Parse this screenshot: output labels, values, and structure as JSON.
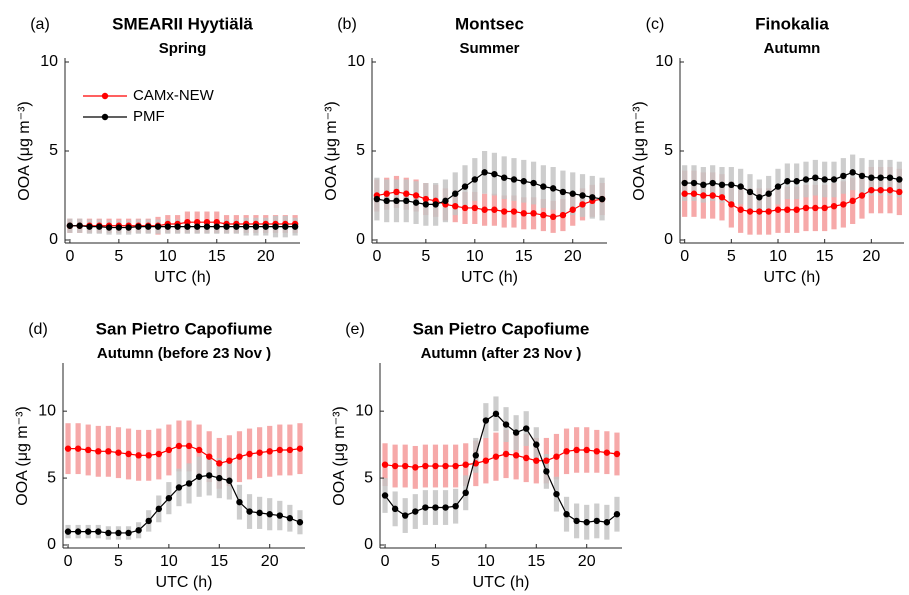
{
  "chart_data": [
    {
      "type": "line",
      "panel_label": "(a)",
      "title": "SMEARII Hyytiälä",
      "subtitle": "Spring",
      "xlabel": "UTC (h)",
      "ylabel": "OOA (μg m⁻³)",
      "x": [
        0,
        1,
        2,
        3,
        4,
        5,
        6,
        7,
        8,
        9,
        10,
        11,
        12,
        13,
        14,
        15,
        16,
        17,
        18,
        19,
        20,
        21,
        22,
        23
      ],
      "xlim": [
        -0.5,
        23.5
      ],
      "xticks": [
        0,
        5,
        10,
        15,
        20
      ],
      "ylim": [
        0,
        10
      ],
      "yticks": [
        0,
        5,
        10
      ],
      "legend": "upper left",
      "series": [
        {
          "name": "CAMx-NEW",
          "color": "#ff0000",
          "error_color": "#f59a9a",
          "values": [
            0.8,
            0.8,
            0.8,
            0.8,
            0.8,
            0.8,
            0.8,
            0.8,
            0.8,
            0.8,
            0.9,
            0.9,
            1.0,
            1.0,
            1.0,
            1.0,
            0.9,
            0.9,
            0.9,
            0.9,
            0.9,
            0.9,
            0.9,
            0.9
          ],
          "errors": [
            0.4,
            0.4,
            0.4,
            0.4,
            0.4,
            0.4,
            0.4,
            0.4,
            0.4,
            0.5,
            0.5,
            0.5,
            0.6,
            0.6,
            0.6,
            0.6,
            0.5,
            0.5,
            0.5,
            0.5,
            0.5,
            0.5,
            0.5,
            0.5
          ]
        },
        {
          "name": "PMF",
          "color": "#000000",
          "error_color": "#c4c4c4",
          "values": [
            0.8,
            0.8,
            0.75,
            0.75,
            0.7,
            0.7,
            0.7,
            0.75,
            0.75,
            0.75,
            0.75,
            0.75,
            0.75,
            0.75,
            0.75,
            0.75,
            0.75,
            0.75,
            0.75,
            0.75,
            0.75,
            0.75,
            0.75,
            0.75
          ],
          "errors": [
            0.4,
            0.4,
            0.4,
            0.4,
            0.4,
            0.4,
            0.4,
            0.4,
            0.4,
            0.4,
            0.4,
            0.4,
            0.4,
            0.4,
            0.4,
            0.4,
            0.4,
            0.4,
            0.5,
            0.5,
            0.5,
            0.6,
            0.6,
            0.5
          ]
        }
      ]
    },
    {
      "type": "line",
      "panel_label": "(b)",
      "title": "Montsec",
      "subtitle": "Summer",
      "xlabel": "UTC (h)",
      "ylabel": "OOA (μg m⁻³)",
      "x": [
        0,
        1,
        2,
        3,
        4,
        5,
        6,
        7,
        8,
        9,
        10,
        11,
        12,
        13,
        14,
        15,
        16,
        17,
        18,
        19,
        20,
        21,
        22,
        23
      ],
      "xlim": [
        -0.5,
        23.5
      ],
      "xticks": [
        0,
        5,
        10,
        15,
        20
      ],
      "ylim": [
        0,
        10
      ],
      "yticks": [
        0,
        5,
        10
      ],
      "series": [
        {
          "color": "#ff0000",
          "error_color": "#f59a9a",
          "values": [
            2.5,
            2.6,
            2.7,
            2.6,
            2.5,
            2.3,
            2.2,
            2.0,
            1.9,
            1.8,
            1.8,
            1.7,
            1.7,
            1.6,
            1.6,
            1.5,
            1.5,
            1.4,
            1.3,
            1.4,
            1.7,
            2.0,
            2.2,
            2.3
          ],
          "errors": [
            0.9,
            0.9,
            0.9,
            0.9,
            0.9,
            0.9,
            0.9,
            0.9,
            0.9,
            0.9,
            0.9,
            0.9,
            0.9,
            0.9,
            0.9,
            0.9,
            0.9,
            0.9,
            0.9,
            0.9,
            0.9,
            0.9,
            0.9,
            0.9
          ]
        },
        {
          "color": "#000000",
          "error_color": "#c4c4c4",
          "values": [
            2.3,
            2.2,
            2.2,
            2.2,
            2.1,
            2.0,
            2.0,
            2.2,
            2.6,
            3.0,
            3.4,
            3.8,
            3.7,
            3.5,
            3.4,
            3.3,
            3.2,
            3.0,
            2.9,
            2.7,
            2.6,
            2.5,
            2.4,
            2.3
          ],
          "errors": [
            1.2,
            1.2,
            1.2,
            1.2,
            1.2,
            1.2,
            1.2,
            1.2,
            1.2,
            1.2,
            1.2,
            1.2,
            1.2,
            1.2,
            1.2,
            1.2,
            1.2,
            1.2,
            1.2,
            1.2,
            1.2,
            1.2,
            1.2,
            1.2
          ]
        }
      ]
    },
    {
      "type": "line",
      "panel_label": "(c)",
      "title": "Finokalia",
      "subtitle": "Autumn",
      "xlabel": "UTC (h)",
      "ylabel": "OOA (μg m⁻³)",
      "x": [
        0,
        1,
        2,
        3,
        4,
        5,
        6,
        7,
        8,
        9,
        10,
        11,
        12,
        13,
        14,
        15,
        16,
        17,
        18,
        19,
        20,
        21,
        22,
        23
      ],
      "xlim": [
        -0.5,
        23.5
      ],
      "xticks": [
        0,
        5,
        10,
        15,
        20
      ],
      "ylim": [
        0,
        10
      ],
      "yticks": [
        0,
        5,
        10
      ],
      "series": [
        {
          "color": "#ff0000",
          "error_color": "#f59a9a",
          "values": [
            2.6,
            2.6,
            2.5,
            2.5,
            2.4,
            2.0,
            1.7,
            1.6,
            1.6,
            1.6,
            1.7,
            1.7,
            1.7,
            1.8,
            1.8,
            1.8,
            1.9,
            2.0,
            2.2,
            2.5,
            2.8,
            2.8,
            2.8,
            2.7
          ],
          "errors": [
            1.3,
            1.3,
            1.3,
            1.3,
            1.3,
            1.3,
            1.3,
            1.3,
            1.3,
            1.3,
            1.3,
            1.3,
            1.3,
            1.3,
            1.3,
            1.3,
            1.3,
            1.3,
            1.3,
            1.3,
            1.3,
            1.3,
            1.3,
            1.3
          ]
        },
        {
          "color": "#000000",
          "error_color": "#c4c4c4",
          "values": [
            3.2,
            3.2,
            3.1,
            3.2,
            3.1,
            3.1,
            3.0,
            2.7,
            2.4,
            2.6,
            3.0,
            3.3,
            3.3,
            3.4,
            3.5,
            3.4,
            3.4,
            3.6,
            3.8,
            3.6,
            3.5,
            3.5,
            3.5,
            3.4
          ],
          "errors": [
            1.0,
            1.0,
            1.0,
            1.0,
            1.0,
            1.0,
            1.0,
            1.0,
            1.0,
            1.0,
            1.0,
            1.0,
            1.0,
            1.0,
            1.0,
            1.0,
            1.0,
            1.0,
            1.0,
            1.0,
            1.0,
            1.0,
            1.0,
            1.0
          ]
        }
      ]
    },
    {
      "type": "line",
      "panel_label": "(d)",
      "title": "San Pietro Capofiume",
      "subtitle": "Autumn (before 23 Nov )",
      "xlabel": "UTC (h)",
      "ylabel": "OOA (μg m⁻³)",
      "x": [
        0,
        1,
        2,
        3,
        4,
        5,
        6,
        7,
        8,
        9,
        10,
        11,
        12,
        13,
        14,
        15,
        16,
        17,
        18,
        19,
        20,
        21,
        22,
        23
      ],
      "xlim": [
        -0.5,
        23.5
      ],
      "xticks": [
        0,
        5,
        10,
        15,
        20
      ],
      "ylim": [
        0,
        13.3
      ],
      "yticks": [
        0,
        5,
        10
      ],
      "series": [
        {
          "color": "#ff0000",
          "error_color": "#f59a9a",
          "values": [
            7.2,
            7.2,
            7.1,
            7.0,
            7.0,
            6.9,
            6.8,
            6.7,
            6.7,
            6.8,
            7.1,
            7.4,
            7.4,
            7.1,
            6.6,
            6.1,
            6.3,
            6.6,
            6.8,
            6.9,
            7.0,
            7.1,
            7.1,
            7.2
          ],
          "errors": [
            1.9,
            1.9,
            1.9,
            1.9,
            1.9,
            1.9,
            1.9,
            1.9,
            1.9,
            1.9,
            1.9,
            1.9,
            1.9,
            1.9,
            1.9,
            1.9,
            1.9,
            1.9,
            1.9,
            1.9,
            1.9,
            1.9,
            1.9,
            1.9
          ]
        },
        {
          "color": "#000000",
          "error_color": "#c4c4c4",
          "values": [
            1.0,
            1.0,
            1.0,
            1.0,
            0.9,
            0.9,
            0.9,
            1.1,
            1.8,
            2.7,
            3.5,
            4.3,
            4.6,
            5.1,
            5.2,
            5.0,
            4.8,
            3.2,
            2.5,
            2.4,
            2.3,
            2.2,
            2.0,
            1.7
          ],
          "errors": [
            0.5,
            0.5,
            0.5,
            0.5,
            0.5,
            0.5,
            0.5,
            0.6,
            0.8,
            1.0,
            1.2,
            1.4,
            1.5,
            1.5,
            1.5,
            1.5,
            1.4,
            1.3,
            1.3,
            1.2,
            1.2,
            1.1,
            1.0,
            0.9
          ]
        }
      ]
    },
    {
      "type": "line",
      "panel_label": "(e)",
      "title": "San Pietro Capofiume",
      "subtitle": "Autumn (after 23 Nov )",
      "xlabel": "UTC (h)",
      "ylabel": "OOA (μg m⁻³)",
      "x": [
        0,
        1,
        2,
        3,
        4,
        5,
        6,
        7,
        8,
        9,
        10,
        11,
        12,
        13,
        14,
        15,
        16,
        17,
        18,
        19,
        20,
        21,
        22,
        23
      ],
      "xlim": [
        -0.5,
        23.5
      ],
      "xticks": [
        0,
        5,
        10,
        15,
        20
      ],
      "ylim": [
        0,
        13.3
      ],
      "yticks": [
        0,
        5,
        10
      ],
      "series": [
        {
          "color": "#ff0000",
          "error_color": "#f59a9a",
          "values": [
            6.0,
            5.9,
            5.9,
            5.8,
            5.9,
            5.9,
            5.9,
            5.9,
            6.0,
            6.1,
            6.3,
            6.6,
            6.8,
            6.7,
            6.5,
            6.3,
            6.3,
            6.6,
            7.0,
            7.1,
            7.1,
            7.0,
            6.9,
            6.8
          ],
          "errors": [
            1.6,
            1.6,
            1.6,
            1.6,
            1.6,
            1.6,
            1.6,
            1.6,
            1.6,
            1.7,
            1.7,
            1.8,
            1.8,
            1.8,
            1.8,
            1.7,
            1.7,
            1.7,
            1.7,
            1.7,
            1.7,
            1.6,
            1.6,
            1.6
          ]
        },
        {
          "color": "#000000",
          "error_color": "#c4c4c4",
          "values": [
            3.7,
            2.7,
            2.2,
            2.5,
            2.8,
            2.8,
            2.8,
            2.9,
            3.9,
            6.7,
            9.3,
            9.8,
            9.0,
            8.4,
            8.7,
            7.5,
            5.5,
            3.8,
            2.3,
            1.8,
            1.7,
            1.8,
            1.7,
            2.3
          ],
          "errors": [
            1.3,
            1.3,
            1.3,
            1.3,
            1.3,
            1.3,
            1.3,
            1.3,
            1.3,
            1.3,
            1.3,
            1.3,
            1.3,
            1.3,
            1.3,
            1.3,
            1.3,
            1.3,
            1.3,
            1.3,
            1.3,
            1.3,
            1.3,
            1.3
          ]
        }
      ]
    }
  ]
}
